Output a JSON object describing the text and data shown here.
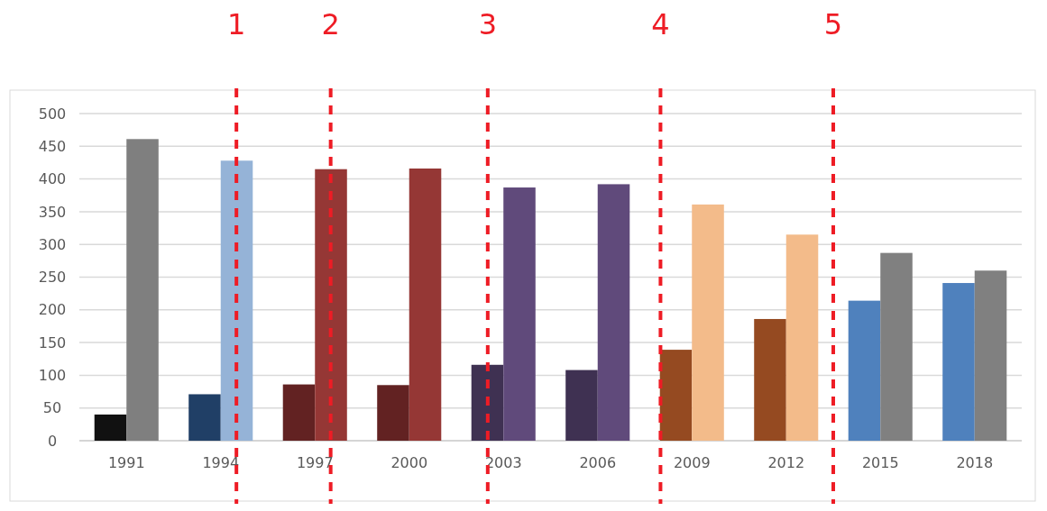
{
  "chart_data": {
    "type": "bar",
    "x": [
      1991,
      1994,
      1997,
      2000,
      2003,
      2006,
      2009,
      2012,
      2015,
      2018
    ],
    "xlim": [
      1989.5,
      2019.5
    ],
    "xticks": [
      1991,
      1994,
      1997,
      2000,
      2003,
      2006,
      2009,
      2012,
      2015,
      2018
    ],
    "ylim": [
      0,
      500
    ],
    "yticks": [
      0,
      50,
      100,
      150,
      200,
      250,
      300,
      350,
      400,
      450,
      500
    ],
    "grid": "y",
    "annotations": [
      "1",
      "2",
      "3",
      "4",
      "5"
    ],
    "series": [
      {
        "colors": [
          "#111111",
          "#203f66",
          "#622222",
          "#622222",
          "#3f3152",
          "#3f3152",
          "#954a21",
          "#954a21",
          "#4f81bd",
          "#4f81bd"
        ],
        "values": [
          40,
          71,
          86,
          85,
          116,
          108,
          139,
          186,
          214,
          241
        ]
      },
      {
        "colors": [
          "#7f7f7f",
          "#95b3d7",
          "#953735",
          "#953735",
          "#604a7b",
          "#604a7b",
          "#f3bb8a",
          "#f3bb8a",
          "#808080",
          "#808080"
        ],
        "values": [
          461,
          428,
          415,
          416,
          387,
          392,
          361,
          315,
          287,
          260
        ]
      }
    ],
    "ref_lines": [
      {
        "axis": "x",
        "value": 1994.5,
        "color": "#ee1c25",
        "line_style": "dashed"
      },
      {
        "axis": "x",
        "value": 1997.5,
        "color": "#ee1c25",
        "line_style": "dashed"
      },
      {
        "axis": "x",
        "value": 2002.5,
        "color": "#ee1c25",
        "line_style": "dashed"
      },
      {
        "axis": "x",
        "value": 2008,
        "color": "#ee1c25",
        "line_style": "dashed"
      },
      {
        "axis": "x",
        "value": 2013.5,
        "color": "#ee1c25",
        "line_style": "dashed"
      }
    ]
  }
}
